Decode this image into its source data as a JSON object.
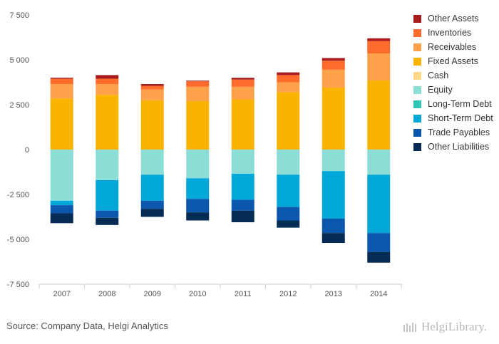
{
  "source": "Source: Company Data, Helgi Analytics",
  "logo_text": "HelgiLibrary.",
  "chart_data": {
    "type": "bar",
    "stacked": true,
    "categories": [
      "2007",
      "2008",
      "2009",
      "2010",
      "2011",
      "2012",
      "2013",
      "2014"
    ],
    "ylim": [
      -7500,
      7500
    ],
    "yticks": [
      -7500,
      -5000,
      -2500,
      0,
      2500,
      5000,
      7500
    ],
    "ytick_labels": [
      "-7 500",
      "-5 000",
      "-2 500",
      "0",
      "2 500",
      "5 000",
      "7 500"
    ],
    "legend_position": "right",
    "grid": false,
    "series": [
      {
        "name": "Other Assets",
        "color": "#a71c1c",
        "values": [
          50,
          200,
          100,
          40,
          100,
          150,
          150,
          150
        ]
      },
      {
        "name": "Inventories",
        "color": "#ff6b2a",
        "values": [
          300,
          300,
          200,
          300,
          400,
          400,
          500,
          700
        ]
      },
      {
        "name": "Receivables",
        "color": "#ffa04a",
        "values": [
          800,
          600,
          600,
          800,
          700,
          550,
          1000,
          1500
        ]
      },
      {
        "name": "Fixed Assets",
        "color": "#fab400",
        "values": [
          2850,
          3050,
          2750,
          2700,
          2800,
          3200,
          3450,
          3850
        ]
      },
      {
        "name": "Cash",
        "color": "#ffd98a",
        "values": [
          0,
          0,
          0,
          0,
          0,
          0,
          0,
          0
        ]
      },
      {
        "name": "Equity",
        "color": "#8cddd6",
        "values": [
          -2850,
          -1700,
          -1400,
          -1600,
          -1350,
          -1400,
          -1200,
          -1400
        ]
      },
      {
        "name": "Long-Term Debt",
        "color": "#2ec4b6",
        "values": [
          0,
          0,
          0,
          0,
          0,
          0,
          0,
          0
        ]
      },
      {
        "name": "Short-Term Debt",
        "color": "#00a7d7",
        "values": [
          -250,
          -1700,
          -1450,
          -1150,
          -1450,
          -1800,
          -2650,
          -3250
        ]
      },
      {
        "name": "Trade Payables",
        "color": "#0a57ad",
        "values": [
          -450,
          -400,
          -450,
          -750,
          -600,
          -750,
          -800,
          -1050
        ]
      },
      {
        "name": "Other Liabilities",
        "color": "#042c55",
        "values": [
          -550,
          -400,
          -450,
          -450,
          -650,
          -400,
          -550,
          -600
        ]
      }
    ]
  }
}
